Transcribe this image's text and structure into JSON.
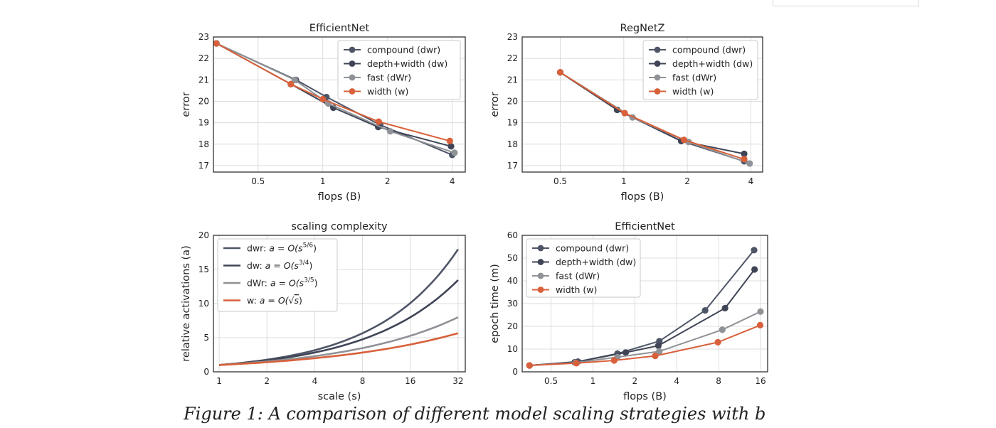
{
  "caption": "Figure 1: A comparison of different model scaling strategies with b",
  "colors": {
    "compound": "#4e5566",
    "depth_width": "#3f4556",
    "fast": "#8f9296",
    "width": "#d8603a",
    "frame": "#222222",
    "grid": "#dcdcdc"
  },
  "chart_data": [
    {
      "type": "line",
      "title": "EfficientNet",
      "xlabel": "flops (B)",
      "ylabel": "error",
      "xscale": "log",
      "xlim": [
        0.31,
        4.6
      ],
      "ylim": [
        16.7,
        23.0
      ],
      "xticks": [
        {
          "v": 0.5,
          "label": "0.5"
        },
        {
          "v": 1,
          "label": "1"
        },
        {
          "v": 2,
          "label": "2"
        },
        {
          "v": 4,
          "label": "4"
        }
      ],
      "yticks": [
        {
          "v": 17,
          "label": "17"
        },
        {
          "v": 18,
          "label": "18"
        },
        {
          "v": 19,
          "label": "19"
        },
        {
          "v": 20,
          "label": "20"
        },
        {
          "v": 21,
          "label": "21"
        },
        {
          "v": 22,
          "label": "22"
        },
        {
          "v": 23,
          "label": "23"
        }
      ],
      "grid": true,
      "legend": "upper right",
      "series": [
        {
          "name": "compound (dwr)",
          "color_key": "compound",
          "x": [
            0.32,
            0.75,
            1.04,
            1.85,
            4.0
          ],
          "y": [
            22.7,
            21.0,
            20.2,
            18.9,
            17.5
          ]
        },
        {
          "name": "depth+width (dw)",
          "color_key": "depth_width",
          "x": [
            0.32,
            0.71,
            1.12,
            1.81,
            3.95
          ],
          "y": [
            22.7,
            20.8,
            19.7,
            18.8,
            17.9
          ]
        },
        {
          "name": "fast (dWr)",
          "color_key": "fast",
          "x": [
            0.32,
            0.74,
            1.06,
            2.06,
            4.1
          ],
          "y": [
            22.7,
            21.0,
            19.9,
            18.6,
            17.6
          ]
        },
        {
          "name": "width (w)",
          "color_key": "width",
          "x": [
            0.32,
            0.71,
            1.0,
            1.82,
            3.9
          ],
          "y": [
            22.7,
            20.8,
            20.1,
            19.05,
            18.15
          ]
        }
      ]
    },
    {
      "type": "line",
      "title": "RegNetZ",
      "xlabel": "flops (B)",
      "ylabel": "error",
      "xscale": "log",
      "xlim": [
        0.33,
        4.55
      ],
      "ylim": [
        16.7,
        23.0
      ],
      "xticks": [
        {
          "v": 0.5,
          "label": "0.5"
        },
        {
          "v": 1,
          "label": "1"
        },
        {
          "v": 2,
          "label": "2"
        },
        {
          "v": 4,
          "label": "4"
        }
      ],
      "yticks": [
        {
          "v": 17,
          "label": "17"
        },
        {
          "v": 18,
          "label": "18"
        },
        {
          "v": 19,
          "label": "19"
        },
        {
          "v": 20,
          "label": "20"
        },
        {
          "v": 21,
          "label": "21"
        },
        {
          "v": 22,
          "label": "22"
        },
        {
          "v": 23,
          "label": "23"
        }
      ],
      "grid": true,
      "legend": "upper right",
      "series": [
        {
          "name": "compound (dwr)",
          "color_key": "compound",
          "x": [
            0.5,
            0.93,
            1.87,
            3.72
          ],
          "y": [
            21.35,
            19.6,
            18.15,
            17.2
          ]
        },
        {
          "name": "depth+width (dw)",
          "color_key": "depth_width",
          "x": [
            0.5,
            0.93,
            1.87,
            3.72
          ],
          "y": [
            21.35,
            19.6,
            18.15,
            17.55
          ]
        },
        {
          "name": "fast (dWr)",
          "color_key": "fast",
          "x": [
            0.5,
            1.1,
            2.03,
            3.95
          ],
          "y": [
            21.35,
            19.25,
            18.1,
            17.1
          ]
        },
        {
          "name": "width (w)",
          "color_key": "width",
          "x": [
            0.5,
            1.01,
            1.93,
            3.72
          ],
          "y": [
            21.35,
            19.45,
            18.2,
            17.3
          ]
        }
      ]
    },
    {
      "type": "line",
      "title": "scaling complexity",
      "xlabel": "scale (s)",
      "ylabel": "relative activations (a)",
      "xscale": "log",
      "xlim": [
        0.92,
        35.5
      ],
      "ylim": [
        0,
        20
      ],
      "xticks": [
        {
          "v": 1,
          "label": "1"
        },
        {
          "v": 2,
          "label": "2"
        },
        {
          "v": 4,
          "label": "4"
        },
        {
          "v": 8,
          "label": "8"
        },
        {
          "v": 16,
          "label": "16"
        },
        {
          "v": 32,
          "label": "32"
        }
      ],
      "yticks": [
        {
          "v": 0,
          "label": "0"
        },
        {
          "v": 5,
          "label": "5"
        },
        {
          "v": 10,
          "label": "10"
        },
        {
          "v": 15,
          "label": "15"
        },
        {
          "v": 20,
          "label": "20"
        }
      ],
      "grid": true,
      "legend": "upper left",
      "series": [
        {
          "name": "dwr: a = O(s^5/6)",
          "legend_text": "dwr: ",
          "legend_math": "a = O(s",
          "legend_sup": "5/6",
          "legend_end": ")",
          "color_key": "compound",
          "x": [
            1,
            2,
            4,
            8,
            16,
            32
          ],
          "y": [
            1.0,
            1.78,
            3.17,
            5.66,
            10.08,
            17.96
          ]
        },
        {
          "name": "dw: a = O(s^3/4)",
          "legend_text": "dw: ",
          "legend_math": "a = O(s",
          "legend_sup": "3/4",
          "legend_end": ")",
          "color_key": "depth_width",
          "x": [
            1,
            2,
            4,
            8,
            16,
            32
          ],
          "y": [
            1.0,
            1.68,
            2.83,
            4.76,
            8.0,
            13.45
          ]
        },
        {
          "name": "dWr: a = O(s^3/5)",
          "legend_text": "dWr: ",
          "legend_math": "a = O(s",
          "legend_sup": "3/5",
          "legend_end": ")",
          "color_key": "fast",
          "x": [
            1,
            2,
            4,
            8,
            16,
            32
          ],
          "y": [
            1.0,
            1.52,
            2.3,
            3.48,
            5.28,
            8.0
          ]
        },
        {
          "name": "w: a = O(√s)",
          "legend_text": "w: ",
          "legend_math": "a = O(√",
          "legend_over": "s",
          "legend_end": ")",
          "color_key": "width",
          "x": [
            1,
            2,
            4,
            8,
            16,
            32
          ],
          "y": [
            1.0,
            1.41,
            2.0,
            2.83,
            4.0,
            5.66
          ]
        }
      ]
    },
    {
      "type": "line",
      "title": "EfficientNet",
      "xlabel": "flops (B)",
      "ylabel": "epoch time (m)",
      "xscale": "log",
      "xlim": [
        0.31,
        18.0
      ],
      "ylim": [
        0,
        60
      ],
      "xticks": [
        {
          "v": 0.5,
          "label": "0.5"
        },
        {
          "v": 1,
          "label": "1"
        },
        {
          "v": 2,
          "label": "2"
        },
        {
          "v": 4,
          "label": "4"
        },
        {
          "v": 8,
          "label": "8"
        },
        {
          "v": 16,
          "label": "16"
        }
      ],
      "yticks": [
        {
          "v": 0,
          "label": "0"
        },
        {
          "v": 10,
          "label": "10"
        },
        {
          "v": 20,
          "label": "20"
        },
        {
          "v": 30,
          "label": "30"
        },
        {
          "v": 40,
          "label": "40"
        },
        {
          "v": 50,
          "label": "50"
        },
        {
          "v": 60,
          "label": "60"
        }
      ],
      "grid": true,
      "legend": "upper left",
      "series": [
        {
          "name": "compound (dwr)",
          "color_key": "compound",
          "x": [
            0.35,
            0.78,
            1.5,
            3.0,
            6.4,
            14.4
          ],
          "y": [
            2.8,
            4.5,
            8.0,
            13.5,
            27.0,
            53.5
          ]
        },
        {
          "name": "depth+width (dw)",
          "color_key": "depth_width",
          "x": [
            0.35,
            0.74,
            1.72,
            2.95,
            8.9,
            14.5
          ],
          "y": [
            2.8,
            4.2,
            8.5,
            11.5,
            28.0,
            45.0
          ]
        },
        {
          "name": "fast (dWr)",
          "color_key": "fast",
          "x": [
            0.35,
            0.75,
            1.5,
            3.0,
            8.5,
            16.0
          ],
          "y": [
            2.8,
            4.0,
            6.5,
            9.0,
            18.5,
            26.5
          ]
        },
        {
          "name": "width (w)",
          "color_key": "width",
          "x": [
            0.35,
            0.76,
            1.42,
            2.8,
            7.9,
            15.9
          ],
          "y": [
            2.8,
            3.8,
            5.0,
            7.0,
            13.0,
            20.5
          ]
        }
      ]
    }
  ]
}
